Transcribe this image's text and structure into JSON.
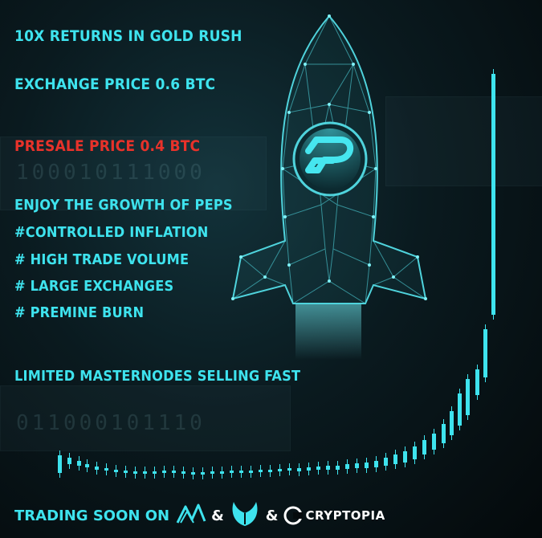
{
  "headline": "10X RETURNS IN GOLD RUSH",
  "exchange_price": "EXCHANGE PRICE 0.6 BTC",
  "presale_price": "PRESALE PRICE 0.4 BTC",
  "features": [
    "ENJOY THE GROWTH OF PEPS",
    "#CONTROLLED INFLATION",
    "# HIGH TRADE VOLUME",
    "# LARGE EXCHANGES",
    "# PREMINE BURN"
  ],
  "masternodes": "LIMITED MASTERNODES SELLING FAST",
  "footer": {
    "trading_label": "TRADING SOON ON",
    "ampersand": "&",
    "cryptopia": "CRYPTOPIA"
  },
  "background": {
    "binary_top": "100010111000",
    "binary_bottom": "011000101110"
  },
  "colors": {
    "accent": "#3ee3ee",
    "presale": "#e8322a",
    "background": "#050b0d"
  },
  "icons": {
    "rocket": "rocket-wireframe-icon",
    "coin": "peps-coin-logo",
    "exchange1": "altex-logo-icon",
    "exchange2": "phoenix-bird-icon",
    "exchange3": "cryptopia-logo-icon"
  }
}
